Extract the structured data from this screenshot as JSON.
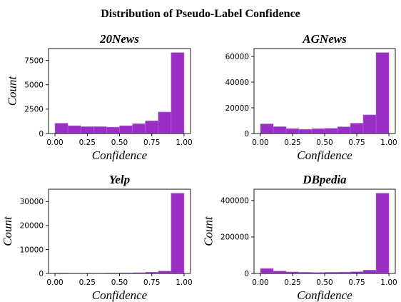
{
  "chart_data": {
    "title": "Distribution of Pseudo-Label Confidence",
    "panels": [
      {
        "type": "bar",
        "title": "20News",
        "xlabel": "Confidence",
        "ylabel": "Count",
        "bin_edges": [
          0.0,
          0.1,
          0.2,
          0.3,
          0.4,
          0.5,
          0.6,
          0.7,
          0.8,
          0.9,
          1.0
        ],
        "values": [
          1050,
          800,
          700,
          700,
          650,
          800,
          1000,
          1300,
          2200,
          8300
        ],
        "xlim": [
          -0.05,
          1.05
        ],
        "ylim": [
          0,
          8715
        ],
        "x_ticks": [
          "0.00",
          "0.25",
          "0.50",
          "0.75",
          "1.00"
        ],
        "y_ticks": [
          "0",
          "2500",
          "5000",
          "7500"
        ],
        "y_tick_values": [
          0,
          2500,
          5000,
          7500
        ]
      },
      {
        "type": "bar",
        "title": "AGNews",
        "xlabel": "Confidence",
        "ylabel": "",
        "bin_edges": [
          0.0,
          0.1,
          0.2,
          0.3,
          0.4,
          0.5,
          0.6,
          0.7,
          0.8,
          0.9,
          1.0
        ],
        "values": [
          7500,
          5300,
          3800,
          3200,
          3700,
          4000,
          5200,
          8000,
          14500,
          63000
        ],
        "xlim": [
          -0.05,
          1.05
        ],
        "ylim": [
          0,
          66150
        ],
        "x_ticks": [
          "0.00",
          "0.25",
          "0.50",
          "0.75",
          "1.00"
        ],
        "y_ticks": [
          "0",
          "20000",
          "40000",
          "60000"
        ],
        "y_tick_values": [
          0,
          20000,
          40000,
          60000
        ]
      },
      {
        "type": "bar",
        "title": "Yelp",
        "xlabel": "Confidence",
        "ylabel": "Count",
        "bin_edges": [
          0.0,
          0.1,
          0.2,
          0.3,
          0.4,
          0.5,
          0.6,
          0.7,
          0.8,
          0.9,
          1.0
        ],
        "values": [
          150,
          100,
          100,
          100,
          150,
          200,
          300,
          500,
          1000,
          33500
        ],
        "xlim": [
          -0.05,
          1.05
        ],
        "ylim": [
          0,
          35175
        ],
        "x_ticks": [
          "0.00",
          "0.25",
          "0.50",
          "0.75",
          "1.00"
        ],
        "y_ticks": [
          "0",
          "10000",
          "20000",
          "30000"
        ],
        "y_tick_values": [
          0,
          10000,
          20000,
          30000
        ]
      },
      {
        "type": "bar",
        "title": "DBpedia",
        "xlabel": "Confidence",
        "ylabel": "Count",
        "bin_edges": [
          0.0,
          0.1,
          0.2,
          0.3,
          0.4,
          0.5,
          0.6,
          0.7,
          0.8,
          0.9,
          1.0
        ],
        "values": [
          27000,
          13000,
          8000,
          6000,
          5000,
          6000,
          7000,
          9000,
          18000,
          440000
        ],
        "xlim": [
          -0.05,
          1.05
        ],
        "ylim": [
          0,
          462000
        ],
        "x_ticks": [
          "0.00",
          "0.25",
          "0.50",
          "0.75",
          "1.00"
        ],
        "y_ticks": [
          "0",
          "200000",
          "400000"
        ],
        "y_tick_values": [
          0,
          200000,
          400000
        ]
      }
    ],
    "colors": {
      "bar": "#9a2ec7",
      "bar_edge": "#b070d6"
    }
  }
}
